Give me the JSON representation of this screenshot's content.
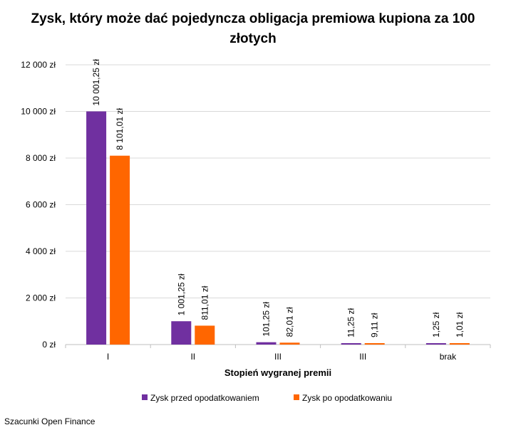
{
  "chart_data": {
    "type": "bar",
    "title_line1": "Zysk, który może dać pojedyncza obligacja premiowa kupiona za 100",
    "title_line2": "złotych",
    "xlabel": "Stopień wygranej  premii",
    "ylabel": "",
    "categories": [
      "I",
      "II",
      "III",
      "III",
      "brak"
    ],
    "ylim": [
      0,
      12000
    ],
    "yticks": [
      0,
      2000,
      4000,
      6000,
      8000,
      10000,
      12000
    ],
    "ytick_labels": [
      "0 zł",
      "2 000 zł",
      "4 000 zł",
      "6 000 zł",
      "8 000 zł",
      "10 000 zł",
      "12 000 zł"
    ],
    "grid": true,
    "legend_position": "bottom",
    "series": [
      {
        "name": "Zysk przed opodatkowaniem",
        "color": "#7030a0",
        "values": [
          10001.25,
          1001.25,
          101.25,
          11.25,
          1.25
        ],
        "labels": [
          "10 001,25 zł",
          "1 001,25 zł",
          "101,25 zł",
          "11,25 zł",
          "1,25 zł"
        ]
      },
      {
        "name": "Zysk po opodatkowaniu",
        "color": "#ff6600",
        "values": [
          8101.01,
          811.01,
          82.01,
          9.11,
          1.01
        ],
        "labels": [
          "8 101,01 zł",
          "811,01 zł",
          "82,01 zł",
          "9,11 zł",
          "1,01 zł"
        ]
      }
    ],
    "source": "Szacunki Open Finance"
  }
}
